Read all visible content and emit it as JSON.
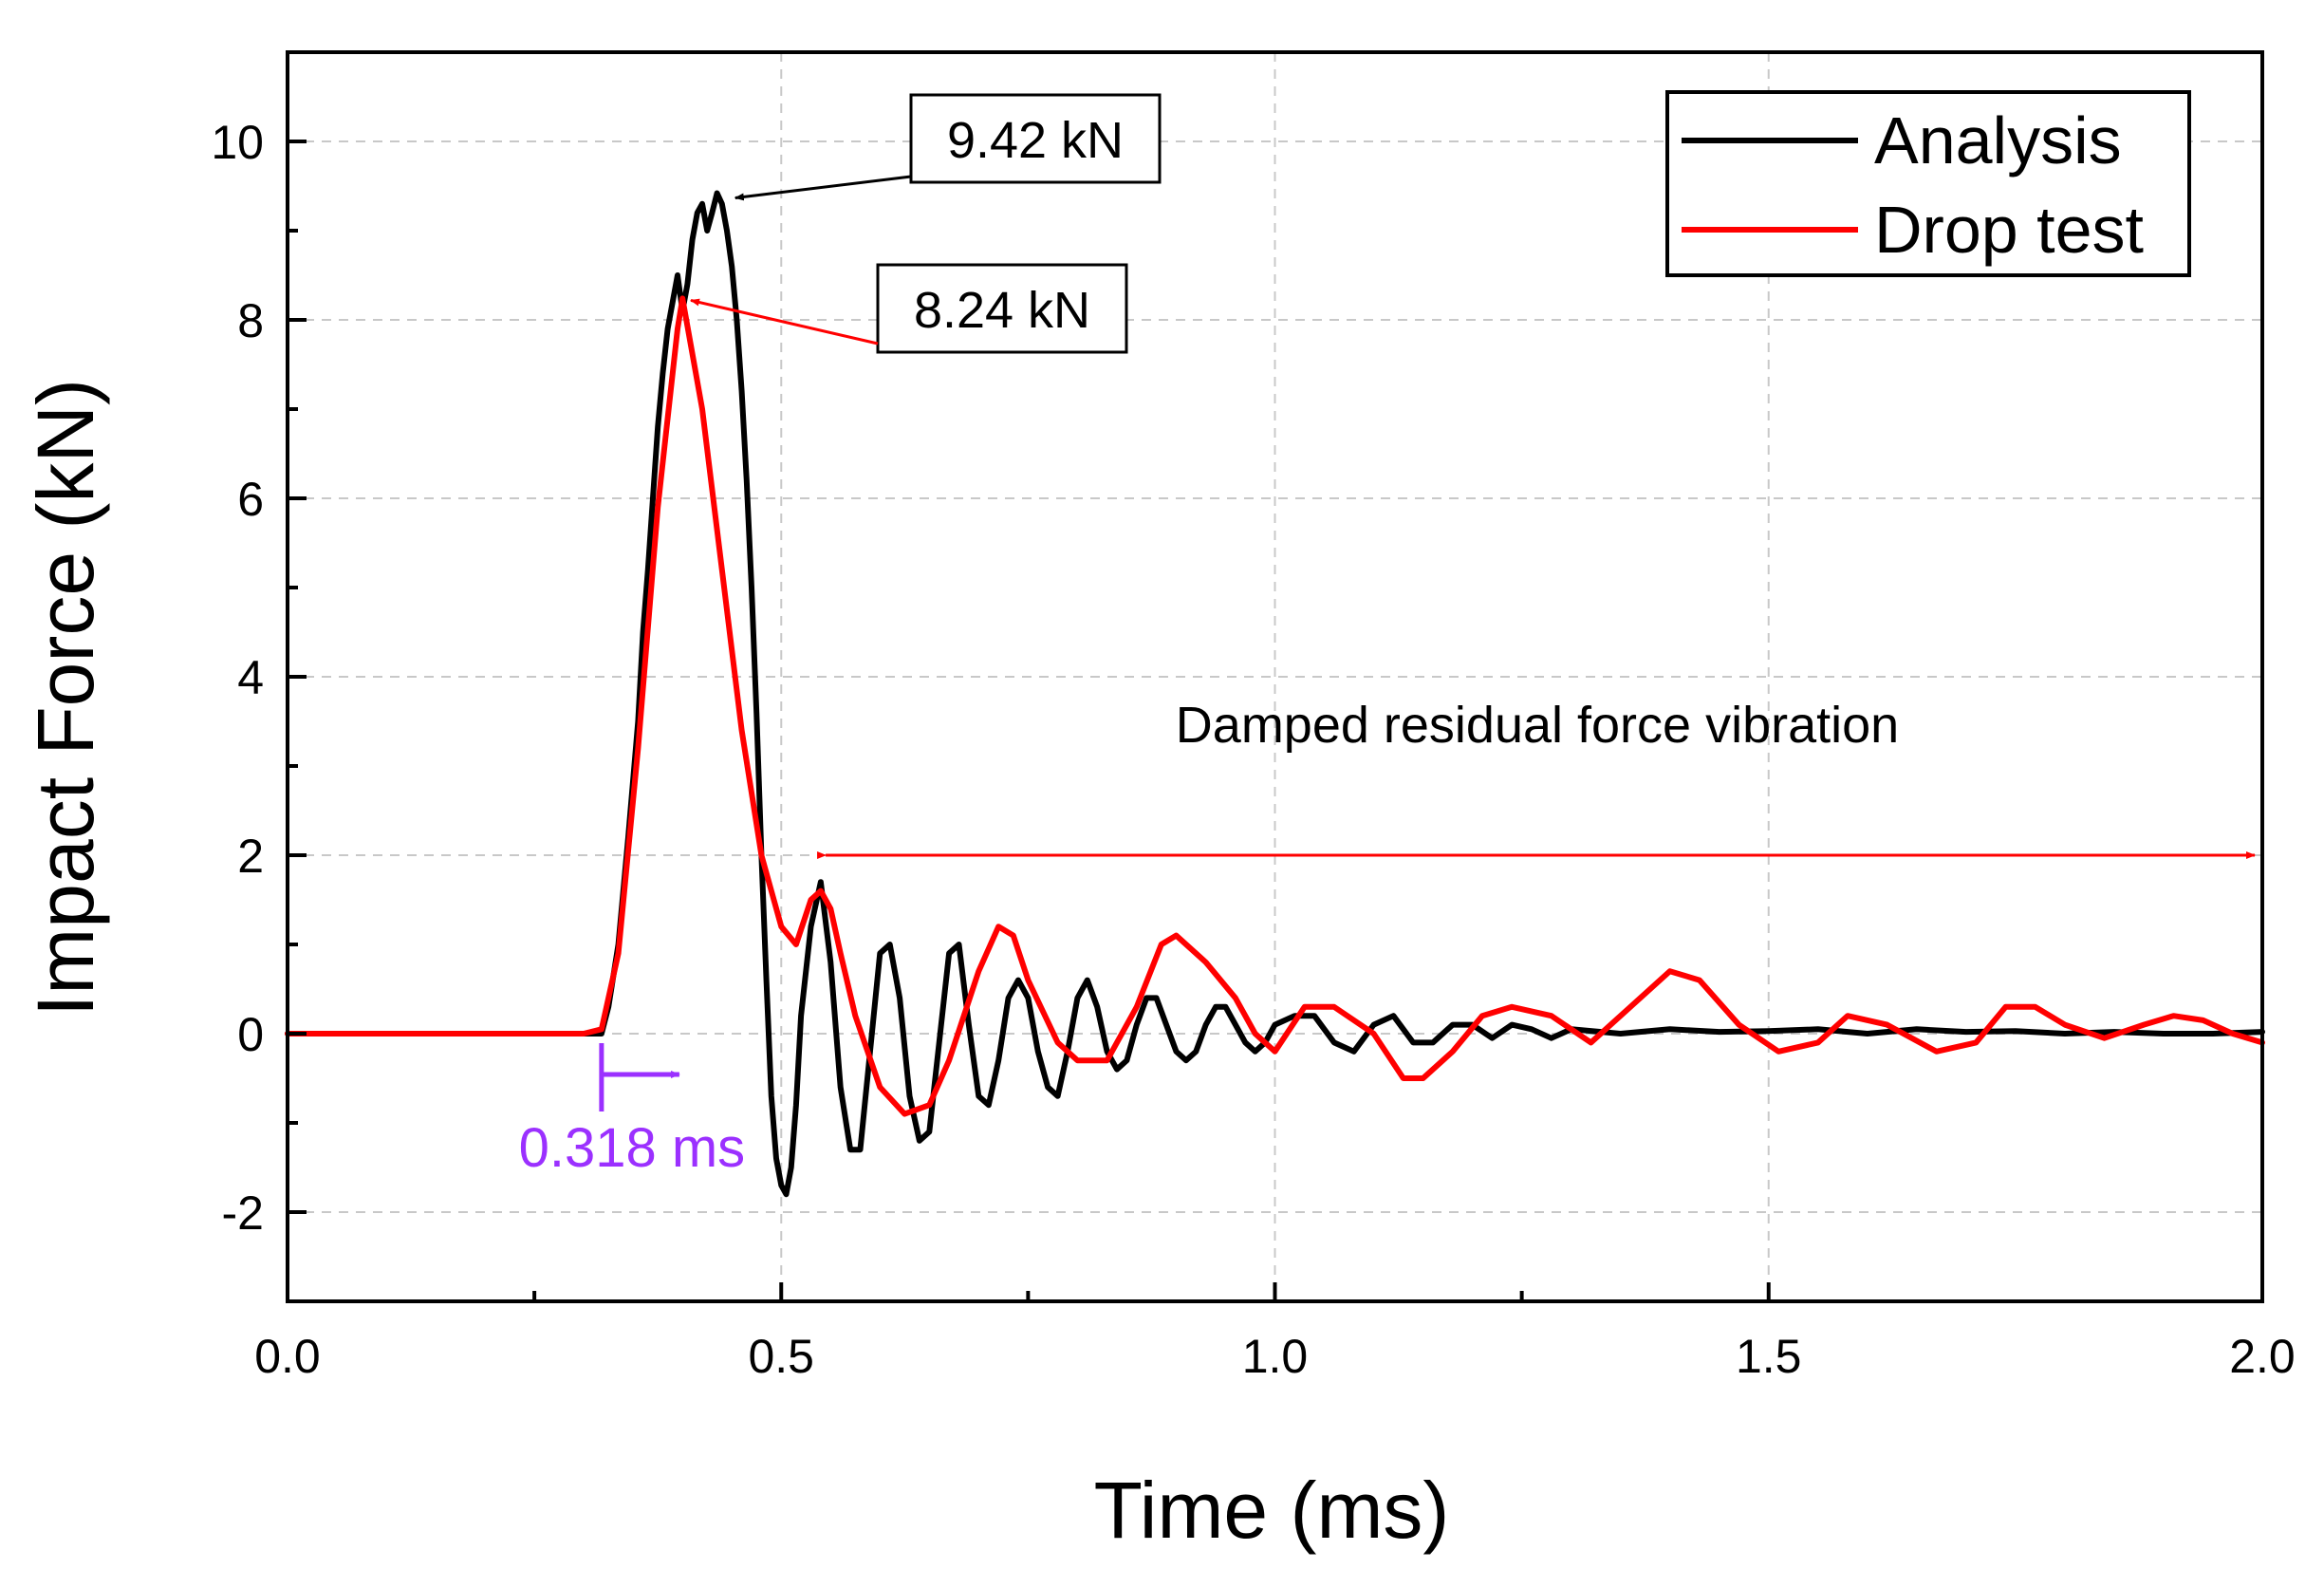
{
  "chart_data": {
    "type": "line",
    "xlabel": "Time (ms)",
    "ylabel": "Impact Force (kN)",
    "xlim": [
      0,
      2.0
    ],
    "ylim": [
      -3,
      11
    ],
    "x_ticks": [
      "0.0",
      "0.5",
      "1.0",
      "1.5",
      "2.0"
    ],
    "y_ticks": [
      "-2",
      "0",
      "2",
      "4",
      "6",
      "8",
      "10"
    ],
    "grid": true,
    "legend_position": "top-right",
    "legend": [
      "Analysis",
      "Drop test"
    ],
    "series": [
      {
        "name": "Analysis",
        "color": "#000000",
        "x": [
          0,
          0.1,
          0.2,
          0.3,
          0.318,
          0.325,
          0.335,
          0.345,
          0.355,
          0.36,
          0.365,
          0.37,
          0.375,
          0.38,
          0.385,
          0.39,
          0.395,
          0.4,
          0.405,
          0.41,
          0.415,
          0.42,
          0.425,
          0.43,
          0.435,
          0.44,
          0.445,
          0.45,
          0.455,
          0.46,
          0.465,
          0.47,
          0.475,
          0.48,
          0.485,
          0.49,
          0.495,
          0.5,
          0.505,
          0.51,
          0.515,
          0.52,
          0.53,
          0.54,
          0.55,
          0.56,
          0.57,
          0.58,
          0.59,
          0.6,
          0.61,
          0.62,
          0.63,
          0.64,
          0.65,
          0.66,
          0.67,
          0.68,
          0.69,
          0.7,
          0.71,
          0.72,
          0.73,
          0.74,
          0.75,
          0.76,
          0.77,
          0.78,
          0.79,
          0.8,
          0.81,
          0.82,
          0.83,
          0.84,
          0.85,
          0.86,
          0.87,
          0.88,
          0.89,
          0.9,
          0.91,
          0.92,
          0.93,
          0.94,
          0.95,
          0.96,
          0.97,
          0.98,
          0.99,
          1.0,
          1.02,
          1.04,
          1.06,
          1.08,
          1.1,
          1.12,
          1.14,
          1.16,
          1.18,
          1.2,
          1.22,
          1.24,
          1.26,
          1.28,
          1.3,
          1.35,
          1.4,
          1.45,
          1.5,
          1.55,
          1.6,
          1.65,
          1.7,
          1.75,
          1.8,
          1.85,
          1.9,
          1.95,
          2.0
        ],
        "y": [
          0,
          0,
          0,
          0,
          0,
          0.3,
          1.0,
          2.2,
          3.5,
          4.5,
          5.2,
          6.0,
          6.8,
          7.4,
          7.9,
          8.2,
          8.5,
          8.1,
          8.4,
          8.9,
          9.2,
          9.3,
          9.0,
          9.2,
          9.42,
          9.3,
          9.0,
          8.6,
          8.0,
          7.2,
          6.2,
          5.0,
          3.6,
          2.0,
          0.6,
          -0.7,
          -1.4,
          -1.7,
          -1.8,
          -1.5,
          -0.8,
          0.2,
          1.2,
          1.7,
          0.8,
          -0.6,
          -1.3,
          -1.3,
          -0.2,
          0.9,
          1.0,
          0.4,
          -0.7,
          -1.2,
          -1.1,
          -0.1,
          0.9,
          1.0,
          0.1,
          -0.7,
          -0.8,
          -0.3,
          0.4,
          0.6,
          0.4,
          -0.2,
          -0.6,
          -0.7,
          -0.2,
          0.4,
          0.6,
          0.3,
          -0.2,
          -0.4,
          -0.3,
          0.1,
          0.4,
          0.4,
          0.1,
          -0.2,
          -0.3,
          -0.2,
          0.1,
          0.3,
          0.3,
          0.1,
          -0.1,
          -0.2,
          -0.1,
          0.1,
          0.2,
          0.2,
          -0.1,
          -0.2,
          0.1,
          0.2,
          -0.1,
          -0.1,
          0.1,
          0.1,
          -0.05,
          0.1,
          0.05,
          -0.05,
          0.05,
          0.0,
          0.05,
          0.02,
          0.03,
          0.05,
          0.0,
          0.05,
          0.02,
          0.03,
          0.0,
          0.02,
          0.0,
          0.0,
          0.02
        ]
      },
      {
        "name": "Drop test",
        "color": "#ff0000",
        "x": [
          0,
          0.1,
          0.2,
          0.3,
          0.318,
          0.335,
          0.355,
          0.375,
          0.39,
          0.395,
          0.4,
          0.42,
          0.44,
          0.46,
          0.48,
          0.5,
          0.515,
          0.53,
          0.54,
          0.55,
          0.56,
          0.575,
          0.6,
          0.625,
          0.65,
          0.67,
          0.7,
          0.72,
          0.735,
          0.75,
          0.78,
          0.8,
          0.83,
          0.86,
          0.885,
          0.9,
          0.93,
          0.96,
          0.98,
          1.0,
          1.03,
          1.06,
          1.1,
          1.13,
          1.15,
          1.18,
          1.21,
          1.24,
          1.28,
          1.32,
          1.36,
          1.4,
          1.43,
          1.47,
          1.51,
          1.55,
          1.58,
          1.62,
          1.67,
          1.71,
          1.74,
          1.77,
          1.8,
          1.84,
          1.88,
          1.91,
          1.94,
          1.97,
          2.0
        ],
        "y": [
          0,
          0,
          0,
          0,
          0.05,
          0.9,
          3.2,
          5.9,
          7.4,
          7.9,
          8.24,
          7.0,
          5.2,
          3.4,
          2.0,
          1.2,
          1.0,
          1.5,
          1.6,
          1.4,
          0.9,
          0.2,
          -0.6,
          -0.9,
          -0.8,
          -0.3,
          0.7,
          1.2,
          1.1,
          0.6,
          -0.1,
          -0.3,
          -0.3,
          0.3,
          1.0,
          1.1,
          0.8,
          0.4,
          0.0,
          -0.2,
          0.3,
          0.3,
          0.0,
          -0.5,
          -0.5,
          -0.2,
          0.2,
          0.3,
          0.2,
          -0.1,
          0.3,
          0.7,
          0.6,
          0.1,
          -0.2,
          -0.1,
          0.2,
          0.1,
          -0.2,
          -0.1,
          0.3,
          0.3,
          0.1,
          -0.05,
          0.1,
          0.2,
          0.15,
          0.0,
          -0.1
        ]
      }
    ],
    "annotations": {
      "peak_analysis": {
        "text": "9.42 kN",
        "x": 0.44,
        "y": 9.42
      },
      "peak_drop": {
        "text": "8.24 kN",
        "x": 0.395,
        "y": 8.24
      },
      "damped": {
        "text": "Damped residual force vibration",
        "x_start": 0.545,
        "x_end": 2.0,
        "y": 2
      },
      "delay": {
        "text": "0.318 ms",
        "x": 0.318,
        "color": "#9b30ff"
      }
    }
  }
}
